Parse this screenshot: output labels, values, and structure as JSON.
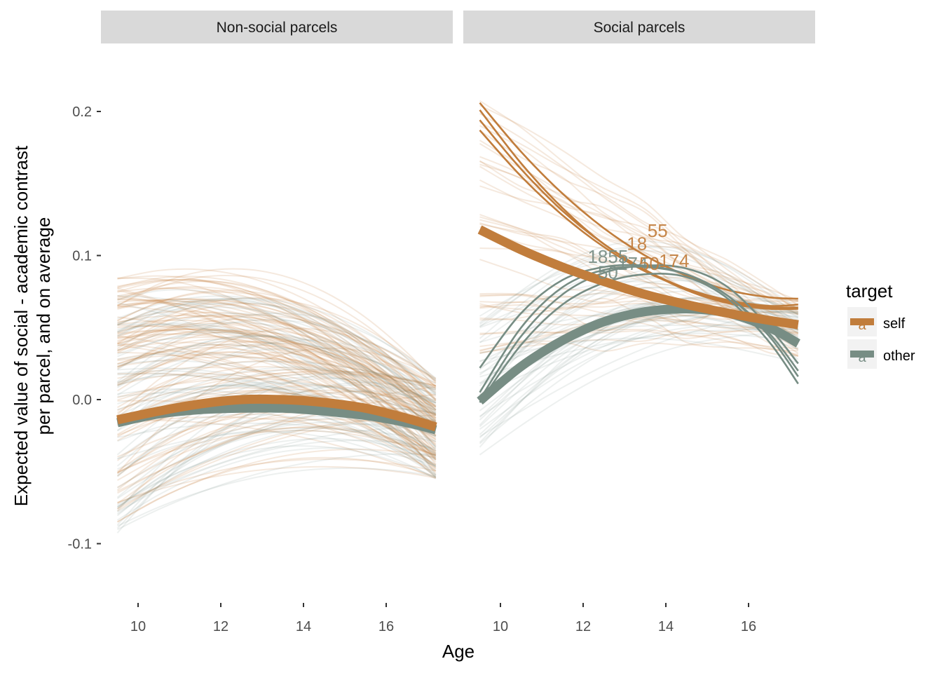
{
  "colors": {
    "self": "#C17D3C",
    "other": "#778D84",
    "strip_bg": "#D9D9D9"
  },
  "chart_data": {
    "type": "line",
    "xlabel": "Age",
    "ylabel_line1": "Expected value of social - academic contrast",
    "ylabel_line2": "per parcel, and on average",
    "xlim": [
      9.5,
      17.2
    ],
    "ylim": [
      -0.13,
      0.23
    ],
    "x_ticks": [
      10,
      12,
      14,
      16
    ],
    "y_ticks": [
      0.2,
      0.1,
      0.0,
      -0.1
    ],
    "y_tick_labels": [
      "0.2",
      "0.1",
      "0.0",
      "-0.1"
    ],
    "grid": false,
    "legend": {
      "title": "target",
      "placement": "right",
      "entries": [
        {
          "label": "self",
          "color": "#C17D3C",
          "key_glyph": "a"
        },
        {
          "label": "other",
          "color": "#778D84",
          "key_glyph": "a"
        }
      ]
    },
    "panels": [
      {
        "title": "Non-social parcels",
        "average_series": [
          {
            "name": "self",
            "x": [
              9.5,
              10.5,
              11.5,
              12.5,
              13.5,
              14.5,
              15.5,
              16.5,
              17.2
            ],
            "y": [
              -0.014,
              -0.008,
              -0.003,
              0.0,
              0.0,
              -0.002,
              -0.006,
              -0.013,
              -0.019
            ]
          },
          {
            "name": "other",
            "x": [
              9.5,
              10.5,
              11.5,
              12.5,
              13.5,
              14.5,
              15.5,
              16.5,
              17.2
            ],
            "y": [
              -0.016,
              -0.01,
              -0.007,
              -0.006,
              -0.006,
              -0.008,
              -0.011,
              -0.016,
              -0.021
            ]
          }
        ],
        "highlighted_parcels": [],
        "annotations": []
      },
      {
        "title": "Social parcels",
        "average_series": [
          {
            "name": "self",
            "x": [
              9.5,
              10.5,
              11.5,
              12.5,
              13.5,
              14.5,
              15.5,
              16.5,
              17.2
            ],
            "y": [
              0.118,
              0.104,
              0.092,
              0.082,
              0.073,
              0.066,
              0.06,
              0.055,
              0.052
            ]
          },
          {
            "name": "other",
            "x": [
              9.5,
              10.5,
              11.5,
              12.5,
              13.5,
              14.5,
              15.5,
              16.5,
              17.2
            ],
            "y": [
              -0.001,
              0.023,
              0.041,
              0.054,
              0.061,
              0.063,
              0.06,
              0.05,
              0.039
            ]
          }
        ],
        "highlighted_parcels": [
          {
            "target": "self",
            "x": [
              9.5,
              10.5,
              11.5,
              12.5,
              13.5,
              14.5,
              15.5,
              16.5,
              17.2
            ],
            "y": [
              0.206,
              0.172,
              0.143,
              0.119,
              0.1,
              0.086,
              0.076,
              0.071,
              0.07
            ]
          },
          {
            "target": "self",
            "x": [
              9.5,
              10.5,
              11.5,
              12.5,
              13.5,
              14.5,
              15.5,
              16.5,
              17.2
            ],
            "y": [
              0.201,
              0.164,
              0.133,
              0.108,
              0.09,
              0.076,
              0.067,
              0.063,
              0.063
            ]
          },
          {
            "target": "self",
            "x": [
              9.5,
              10.5,
              11.5,
              12.5,
              13.5,
              14.5,
              15.5,
              16.5,
              17.2
            ],
            "y": [
              0.194,
              0.16,
              0.131,
              0.108,
              0.09,
              0.077,
              0.068,
              0.064,
              0.064
            ]
          },
          {
            "target": "self",
            "x": [
              9.5,
              10.5,
              11.5,
              12.5,
              13.5,
              14.5,
              15.5,
              16.5,
              17.2
            ],
            "y": [
              0.187,
              0.155,
              0.128,
              0.106,
              0.089,
              0.077,
              0.069,
              0.065,
              0.066
            ]
          },
          {
            "target": "other",
            "x": [
              9.5,
              10.5,
              11.5,
              12.5,
              13.5,
              14.5,
              15.5,
              16.5,
              17.2
            ],
            "y": [
              0.022,
              0.06,
              0.083,
              0.092,
              0.093,
              0.087,
              0.072,
              0.046,
              0.02
            ]
          },
          {
            "target": "other",
            "x": [
              9.5,
              10.5,
              11.5,
              12.5,
              13.5,
              14.5,
              15.5,
              16.5,
              17.2
            ],
            "y": [
              0.005,
              0.05,
              0.078,
              0.09,
              0.092,
              0.087,
              0.072,
              0.044,
              0.016
            ]
          },
          {
            "target": "other",
            "x": [
              9.5,
              10.5,
              11.5,
              12.5,
              13.5,
              14.5,
              15.5,
              16.5,
              17.2
            ],
            "y": [
              0.0,
              0.044,
              0.073,
              0.088,
              0.093,
              0.091,
              0.078,
              0.05,
              0.025
            ]
          },
          {
            "target": "other",
            "x": [
              9.5,
              10.5,
              11.5,
              12.5,
              13.5,
              14.5,
              15.5,
              16.5,
              17.2
            ],
            "y": [
              -0.002,
              0.038,
              0.066,
              0.081,
              0.087,
              0.085,
              0.07,
              0.04,
              0.011
            ]
          }
        ],
        "annotations": [
          {
            "text": "55",
            "target": "self",
            "x": 13.8,
            "y": 0.113
          },
          {
            "text": "18",
            "target": "self",
            "x": 13.3,
            "y": 0.104
          },
          {
            "text": "1855",
            "target": "other",
            "x": 12.6,
            "y": 0.095
          },
          {
            "text": "174",
            "target": "self",
            "x": 14.2,
            "y": 0.092
          },
          {
            "text": "50",
            "target": "other",
            "x": 12.6,
            "y": 0.084
          },
          {
            "text": "174",
            "target": "other",
            "x": 13.2,
            "y": 0.09
          },
          {
            "text": "50",
            "target": "self",
            "x": 13.6,
            "y": 0.09
          }
        ]
      }
    ]
  }
}
